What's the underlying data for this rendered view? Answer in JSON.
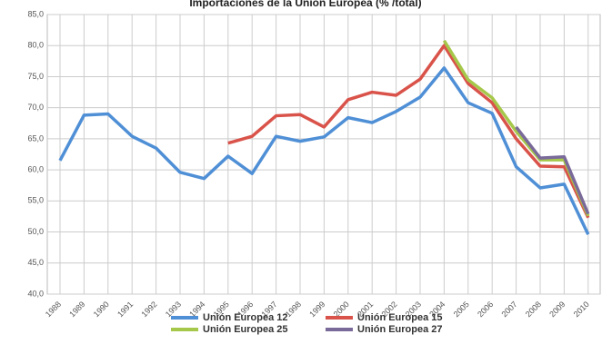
{
  "chart_data": {
    "type": "line",
    "title": "Importaciones de la Unión Europea (% /total)",
    "categories": [
      "1988",
      "1989",
      "1990",
      "1991",
      "1992",
      "1993",
      "1994",
      "1995",
      "1996",
      "1997",
      "1998",
      "1999",
      "2000",
      "2001",
      "2002",
      "2003",
      "2004",
      "2005",
      "2006",
      "2007",
      "2008",
      "2009",
      "2010"
    ],
    "series": [
      {
        "name": "Unión Europea 12",
        "color": "#4f8fd6",
        "values": [
          61.5,
          68.8,
          69,
          65.4,
          63.5,
          59.6,
          58.6,
          62.2,
          59.4,
          65.4,
          64.6,
          65.3,
          68.4,
          67.6,
          69.4,
          71.7,
          76.4,
          70.8,
          69.1,
          60.5,
          57.1,
          57.7,
          49.6
        ]
      },
      {
        "name": "Unión Europea 15",
        "color": "#d9534a",
        "values": [
          null,
          null,
          null,
          null,
          null,
          null,
          null,
          64.3,
          65.4,
          68.7,
          68.9,
          66.9,
          71.3,
          72.5,
          72,
          74.6,
          80,
          73.9,
          70.8,
          65,
          60.6,
          60.5,
          52.3
        ]
      },
      {
        "name": "Unión Europea 25",
        "color": "#a6c84a",
        "values": [
          null,
          null,
          null,
          null,
          null,
          null,
          null,
          null,
          null,
          null,
          null,
          null,
          null,
          null,
          null,
          null,
          80.8,
          74.5,
          71.6,
          66.2,
          61.6,
          61.6,
          52.6
        ]
      },
      {
        "name": "Unión Europea 27",
        "color": "#7a6a9a",
        "values": [
          null,
          null,
          null,
          null,
          null,
          null,
          null,
          null,
          null,
          null,
          null,
          null,
          null,
          null,
          null,
          null,
          null,
          null,
          null,
          66.9,
          61.9,
          62.1,
          52.9
        ]
      }
    ],
    "ylim": [
      40,
      85
    ],
    "yticks": [
      {
        "value": 40,
        "label": "40,0"
      },
      {
        "value": 45,
        "label": "45,0"
      },
      {
        "value": 50,
        "label": "50,0"
      },
      {
        "value": 55,
        "label": "55,0"
      },
      {
        "value": 60,
        "label": "60,0"
      },
      {
        "value": 65,
        "label": "65,0"
      },
      {
        "value": 70,
        "label": "70,0"
      },
      {
        "value": 75,
        "label": "75,0"
      },
      {
        "value": 80,
        "label": "80,0"
      },
      {
        "value": 85,
        "label": "85,0"
      }
    ],
    "grid": true
  }
}
